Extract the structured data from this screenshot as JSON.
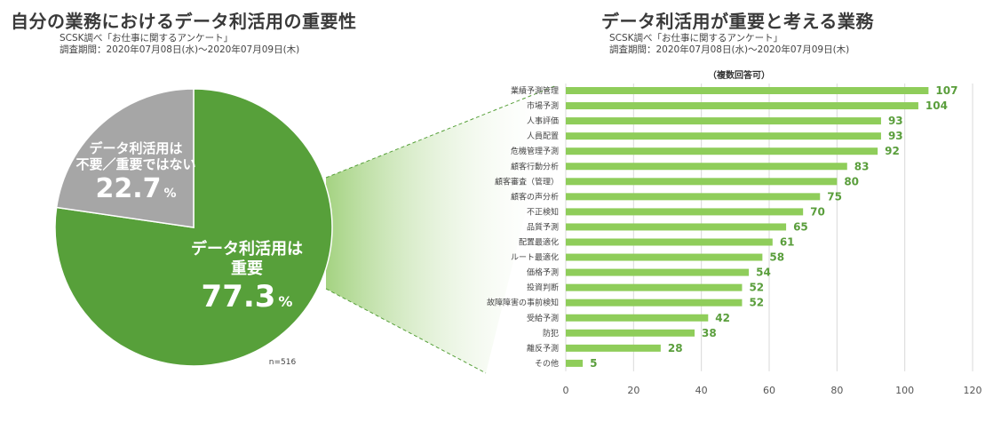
{
  "left_title": "自分の業務におけるデータ利活用の重要性",
  "right_title": "データ利活用が重要と考える業務",
  "source": {
    "line1": "SCSK調べ「お仕事に関するアンケート」",
    "line2": "調査期間：2020年07月08日(水)～2020年07月09日(木)"
  },
  "colors": {
    "green": "#57a03a",
    "gray": "#a6a6a6",
    "bar": "#8fcd5a",
    "value_text": "#5a9e3c"
  },
  "chart_data": [
    {
      "type": "pie",
      "title": "自分の業務におけるデータ利活用の重要性",
      "slices": [
        {
          "label_line1": "データ利活用は",
          "label_line2": "重要",
          "value": 77.3,
          "display": "77.3",
          "unit": "%"
        },
        {
          "label_line1": "データ利活用は",
          "label_line2": "不要／重要ではない",
          "value": 22.7,
          "display": "22.7",
          "unit": "%"
        }
      ],
      "n_label": "n=516"
    },
    {
      "type": "bar",
      "orientation": "horizontal",
      "title": "データ利活用が重要と考える業務",
      "subtitle": "（複数回答可）",
      "categories": [
        "業績予測管理",
        "市場予測",
        "人事評価",
        "人員配置",
        "危機管理予測",
        "顧客行動分析",
        "顧客審査（管理）",
        "顧客の声分析",
        "不正検知",
        "品質予測",
        "配置最適化",
        "ルート最適化",
        "価格予測",
        "投資判断",
        "故障障害の事前検知",
        "受給予測",
        "防犯",
        "離反予測",
        "その他"
      ],
      "values": [
        107,
        104,
        93,
        93,
        92,
        83,
        80,
        75,
        70,
        65,
        61,
        58,
        54,
        52,
        52,
        42,
        38,
        28,
        5
      ],
      "xlim": [
        0,
        120
      ],
      "xticks": [
        0,
        20,
        40,
        60,
        80,
        100,
        120
      ],
      "grid": true
    }
  ]
}
